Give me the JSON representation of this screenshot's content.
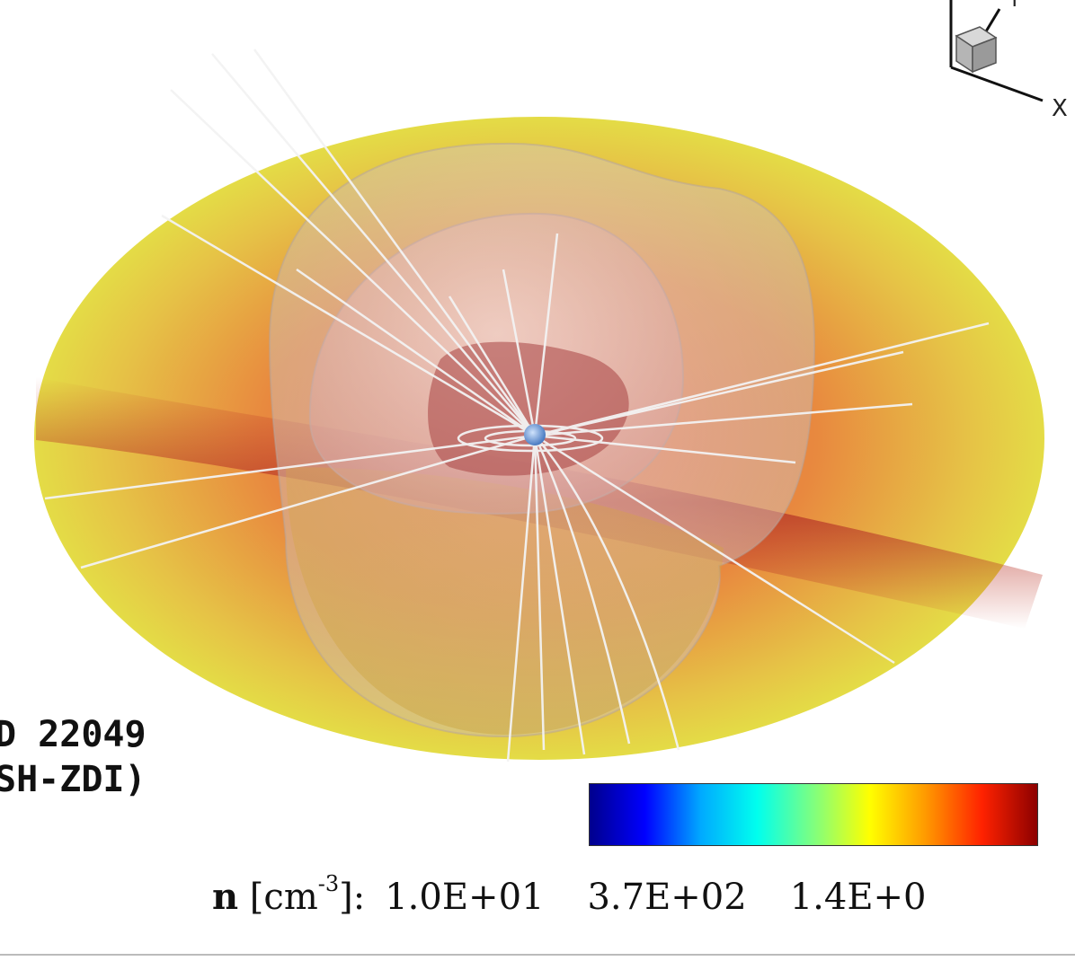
{
  "figure": {
    "star_label": "D 22049",
    "model_label": "SH-ZDI)",
    "axis_x": "X",
    "axis_y": "Y",
    "colorbar": {
      "variable": "n",
      "unit_open": " [cm",
      "unit_exponent": "-3",
      "unit_close": "]:",
      "tick_values": [
        "1.0E+01",
        "3.7E+02",
        "1.4E+0"
      ],
      "colors": [
        "#00008b",
        "#0000ff",
        "#00aaff",
        "#00ffee",
        "#7fff7f",
        "#ffff00",
        "#ff9900",
        "#ff2200",
        "#8b0000"
      ]
    },
    "scene_colors": {
      "disk_outer": "#e4dc46",
      "disk_mid": "#e98b3e",
      "disk_band": "#c23a2a",
      "shell": "#d8cfca",
      "field_lines": "#f2f2f2",
      "star": "#7aa8e0"
    }
  }
}
